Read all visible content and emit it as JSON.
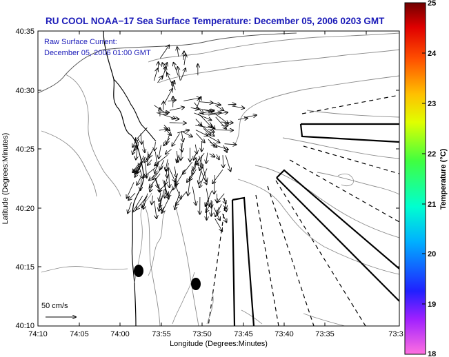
{
  "title": "RU COOL  NOAA−17  Sea Surface Temperature:  December 05, 2006 0203 GMT",
  "annotation": {
    "line1": "Raw Surface Current:",
    "line2": "December 05, 2006 01:00 GMT"
  },
  "scale_arrow_label": "50 cm/s",
  "axes": {
    "xlabel": "Longitude (Degrees:Minutes)",
    "ylabel": "Latitude (Degrees:Minutes)",
    "x_ticks": [
      "74:10",
      "74:05",
      "74:00",
      "73:55",
      "73:50",
      "73:45",
      "73:40",
      "73:35",
      "73:3"
    ],
    "y_ticks": [
      "40:35",
      "40:30",
      "40:25",
      "40:20",
      "40:15",
      "40:10"
    ]
  },
  "colorbar": {
    "label": "Temperature (°C)",
    "ticks": [
      "25",
      "24",
      "23",
      "22",
      "21",
      "20",
      "19",
      "18"
    ],
    "colors": [
      "#ff70e0",
      "#a020ff",
      "#2020ff",
      "#00b0ff",
      "#00ffd0",
      "#40ff40",
      "#e0ff00",
      "#ffc000",
      "#ff5000",
      "#e00000",
      "#700000"
    ]
  },
  "colors": {
    "title": "#1a1ab8",
    "contour": "#8a8a8a",
    "coast": "#000000"
  }
}
